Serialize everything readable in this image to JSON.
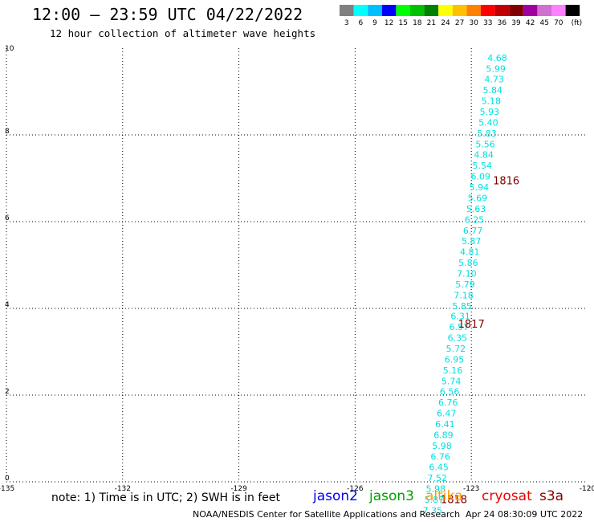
{
  "header": {
    "title": "12:00 – 23:59 UTC 04/22/2022",
    "subtitle": "12 hour collection of altimeter wave heights"
  },
  "colorbar": {
    "labels": [
      "3",
      "6",
      "9",
      "12",
      "15",
      "18",
      "21",
      "24",
      "27",
      "30",
      "33",
      "36",
      "39",
      "42",
      "45",
      "70",
      "(ft)"
    ],
    "colors": [
      "#808080",
      "#00ffff",
      "#00bfff",
      "#0000ff",
      "#00ff00",
      "#00c000",
      "#008000",
      "#ffff00",
      "#ffc000",
      "#ff8000",
      "#ff0000",
      "#c00000",
      "#800000",
      "#a000a0",
      "#d070d0",
      "#ff80ff",
      "#000000"
    ]
  },
  "footer": {
    "note": "note:  1) Time is in UTC;  2) SWH is in feet",
    "credit": "NOAA/NESDIS Center for Satellite Applications and Research",
    "timestamp": "Apr 24 08:30:09 UTC 2022"
  },
  "satellites": [
    {
      "name": "jason2",
      "color": "#0000ee"
    },
    {
      "name": "jason3",
      "color": "#00a000"
    },
    {
      "name": "altika",
      "color": "#ff9900"
    },
    {
      "name": "cryosat",
      "color": "#ee0000"
    },
    {
      "name": "s3a",
      "color": "#880000"
    }
  ],
  "chart_data": {
    "type": "scatter",
    "xlim": [
      -135,
      -120
    ],
    "ylim": [
      0,
      10
    ],
    "x_ticks": [
      -135,
      -132,
      -129,
      -126,
      -123,
      -120
    ],
    "y_ticks": [
      0,
      2,
      4,
      6,
      8,
      10
    ],
    "grid": true,
    "point_color": "#00e0e0",
    "time_color": "#800000",
    "series": [
      {
        "name": "jason3",
        "points": [
          {
            "x": -122.33,
            "y": 9.78,
            "label": "4.68"
          },
          {
            "x": -122.37,
            "y": 9.53,
            "label": "5.99"
          },
          {
            "x": -122.41,
            "y": 9.29,
            "label": "4.73"
          },
          {
            "x": -122.45,
            "y": 9.04,
            "label": "5.84"
          },
          {
            "x": -122.49,
            "y": 8.79,
            "label": "5.18"
          },
          {
            "x": -122.53,
            "y": 8.54,
            "label": "5.93"
          },
          {
            "x": -122.56,
            "y": 8.29,
            "label": "5.40"
          },
          {
            "x": -122.6,
            "y": 8.04,
            "label": "5.83"
          },
          {
            "x": -122.64,
            "y": 7.79,
            "label": "5.56"
          },
          {
            "x": -122.68,
            "y": 7.55,
            "label": "4.84"
          },
          {
            "x": -122.72,
            "y": 7.3,
            "label": "5.54"
          },
          {
            "x": -122.76,
            "y": 7.05,
            "label": "6.09"
          },
          {
            "x": -122.8,
            "y": 6.8,
            "label": "5.94"
          },
          {
            "x": -122.84,
            "y": 6.55,
            "label": "5.69"
          },
          {
            "x": -122.88,
            "y": 6.3,
            "label": "5.63"
          },
          {
            "x": -122.92,
            "y": 6.05,
            "label": "6.25"
          },
          {
            "x": -122.96,
            "y": 5.8,
            "label": "6.77"
          },
          {
            "x": -123.0,
            "y": 5.56,
            "label": "5.87"
          },
          {
            "x": -123.04,
            "y": 5.31,
            "label": "4.81"
          },
          {
            "x": -123.08,
            "y": 5.06,
            "label": "5.86"
          },
          {
            "x": -123.12,
            "y": 4.81,
            "label": "7.10"
          },
          {
            "x": -123.16,
            "y": 4.56,
            "label": "5.79"
          },
          {
            "x": -123.2,
            "y": 4.31,
            "label": "7.18"
          },
          {
            "x": -123.24,
            "y": 4.06,
            "label": "5.85"
          },
          {
            "x": -123.28,
            "y": 3.82,
            "label": "6.31"
          },
          {
            "x": -123.32,
            "y": 3.57,
            "label": "6.57"
          },
          {
            "x": -123.36,
            "y": 3.32,
            "label": "6.35"
          },
          {
            "x": -123.4,
            "y": 3.07,
            "label": "5.72"
          },
          {
            "x": -123.44,
            "y": 2.82,
            "label": "6.95"
          },
          {
            "x": -123.48,
            "y": 2.57,
            "label": "5.16"
          },
          {
            "x": -123.52,
            "y": 2.32,
            "label": "5.74"
          },
          {
            "x": -123.56,
            "y": 2.08,
            "label": "6.56"
          },
          {
            "x": -123.6,
            "y": 1.83,
            "label": "6.76"
          },
          {
            "x": -123.64,
            "y": 1.58,
            "label": "6.47"
          },
          {
            "x": -123.68,
            "y": 1.33,
            "label": "6.41"
          },
          {
            "x": -123.72,
            "y": 1.08,
            "label": "6.89"
          },
          {
            "x": -123.76,
            "y": 0.83,
            "label": "5.98"
          },
          {
            "x": -123.8,
            "y": 0.58,
            "label": "6.76"
          },
          {
            "x": -123.84,
            "y": 0.34,
            "label": "6.45"
          },
          {
            "x": -123.88,
            "y": 0.09,
            "label": "7.52"
          },
          {
            "x": -123.92,
            "y": -0.16,
            "label": "5.98"
          },
          {
            "x": -123.96,
            "y": -0.41,
            "label": "5.87"
          },
          {
            "x": -124.0,
            "y": -0.66,
            "label": "7.35"
          }
        ]
      }
    ],
    "time_labels": [
      {
        "x": -122.1,
        "y": 6.95,
        "label": "1816"
      },
      {
        "x": -123.0,
        "y": 3.65,
        "label": "1817"
      },
      {
        "x": -123.45,
        "y": -0.4,
        "label": "1818"
      }
    ]
  }
}
